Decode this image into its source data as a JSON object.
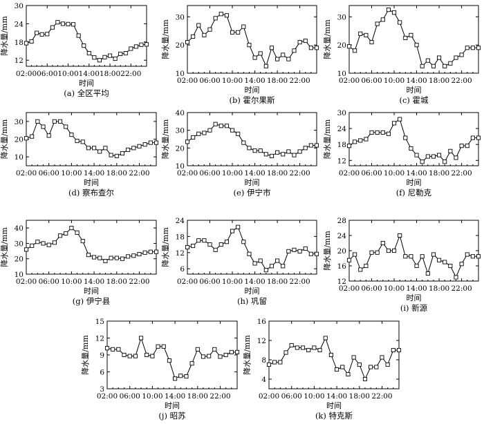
{
  "chart_data": [
    {
      "caption": "(a) 全区平均",
      "type": "line",
      "xlabel": "时间",
      "ylabel": "降水量/mm",
      "xticks": [
        "02:00",
        "06:00",
        "10:00",
        "14:00",
        "18:00",
        "22:00"
      ],
      "yticks": [
        12,
        18,
        24,
        30
      ],
      "ylim": [
        10,
        30
      ],
      "x": [
        "01:00",
        "02:00",
        "03:00",
        "04:00",
        "05:00",
        "06:00",
        "07:00",
        "08:00",
        "09:00",
        "10:00",
        "11:00",
        "12:00",
        "13:00",
        "14:00",
        "15:00",
        "16:00",
        "17:00",
        "18:00",
        "19:00",
        "20:00",
        "21:00",
        "22:00",
        "23:00",
        "24:00",
        "25:00"
      ],
      "values": [
        18.2,
        17.6,
        18.2,
        21.0,
        20.5,
        20.6,
        22.8,
        24.5,
        24.0,
        23.9,
        23.8,
        20.1,
        16.8,
        14.3,
        12.9,
        12.0,
        13.0,
        13.5,
        12.5,
        14.1,
        14.3,
        15.8,
        16.5,
        17.1,
        17.2
      ]
    },
    {
      "caption": "(b) 霍尔果斯",
      "type": "line",
      "xlabel": "时间",
      "ylabel": "降水量/mm",
      "xticks": [
        "02:00",
        "06:00",
        "10:00",
        "14:00",
        "18:00",
        "22:00"
      ],
      "yticks": [
        10,
        20,
        30
      ],
      "ylim": [
        10,
        34
      ],
      "x": [
        "01:00",
        "02:00",
        "03:00",
        "04:00",
        "05:00",
        "06:00",
        "07:00",
        "08:00",
        "09:00",
        "10:00",
        "11:00",
        "12:00",
        "13:00",
        "14:00",
        "15:00",
        "16:00",
        "17:00",
        "18:00",
        "19:00",
        "20:00",
        "21:00",
        "22:00",
        "23:00",
        "24:00",
        "25:00"
      ],
      "values": [
        19.5,
        21.0,
        23.0,
        27.0,
        23.5,
        25.5,
        29.5,
        31.0,
        30.5,
        24.5,
        24.5,
        26.5,
        20.0,
        15.5,
        17.0,
        12.5,
        19.0,
        15.0,
        16.5,
        15.0,
        18.0,
        21.0,
        21.5,
        19.0,
        19.0
      ]
    },
    {
      "caption": "(c) 霍城",
      "type": "line",
      "xlabel": "时间",
      "ylabel": "降水量/mm",
      "xticks": [
        "02:00",
        "06:00",
        "10:00",
        "14:00",
        "18:00",
        "22:00"
      ],
      "yticks": [
        10,
        20,
        30
      ],
      "ylim": [
        10,
        34
      ],
      "x": [
        "01:00",
        "02:00",
        "03:00",
        "04:00",
        "05:00",
        "06:00",
        "07:00",
        "08:00",
        "09:00",
        "10:00",
        "11:00",
        "12:00",
        "13:00",
        "14:00",
        "15:00",
        "16:00",
        "17:00",
        "18:00",
        "19:00",
        "20:00",
        "21:00",
        "22:00",
        "23:00",
        "24:00",
        "25:00"
      ],
      "values": [
        19.5,
        19.5,
        18.0,
        24.0,
        23.5,
        21.0,
        27.5,
        29.0,
        32.5,
        31.5,
        28.0,
        22.5,
        23.5,
        20.0,
        12.5,
        14.5,
        12.5,
        15.5,
        12.5,
        13.5,
        15.5,
        16.5,
        19.0,
        19.0,
        19.0
      ]
    },
    {
      "caption": "(d) 察布查尔",
      "type": "line",
      "xlabel": "时间",
      "ylabel": "降水量/mm",
      "xticks": [
        "02:00",
        "06:00",
        "10:00",
        "14:00",
        "18:00",
        "22:00"
      ],
      "yticks": [
        10,
        20,
        30
      ],
      "ylim": [
        5,
        35
      ],
      "x": [
        "01:00",
        "02:00",
        "03:00",
        "04:00",
        "05:00",
        "06:00",
        "07:00",
        "08:00",
        "09:00",
        "10:00",
        "11:00",
        "12:00",
        "13:00",
        "14:00",
        "15:00",
        "16:00",
        "17:00",
        "18:00",
        "19:00",
        "20:00",
        "21:00",
        "22:00",
        "23:00",
        "24:00",
        "25:00"
      ],
      "values": [
        20.0,
        20.5,
        21.5,
        30.0,
        27.0,
        22.0,
        30.0,
        30.0,
        27.0,
        22.5,
        19.0,
        18.5,
        15.0,
        15.0,
        13.0,
        15.0,
        11.0,
        10.5,
        12.0,
        14.0,
        15.0,
        16.0,
        17.0,
        18.0,
        18.0
      ]
    },
    {
      "caption": "(e) 伊宁市",
      "type": "line",
      "xlabel": "时间",
      "ylabel": "降水量/mm",
      "xticks": [
        "02:00",
        "06:00",
        "10:00",
        "14:00",
        "18:00",
        "22:00"
      ],
      "yticks": [
        10,
        20,
        30,
        40
      ],
      "ylim": [
        10,
        40
      ],
      "x": [
        "01:00",
        "02:00",
        "03:00",
        "04:00",
        "05:00",
        "06:00",
        "07:00",
        "08:00",
        "09:00",
        "10:00",
        "11:00",
        "12:00",
        "13:00",
        "14:00",
        "15:00",
        "16:00",
        "17:00",
        "18:00",
        "19:00",
        "20:00",
        "21:00",
        "22:00",
        "23:00",
        "24:00",
        "25:00"
      ],
      "values": [
        25.0,
        23.5,
        26.0,
        28.0,
        28.5,
        30.0,
        33.5,
        32.5,
        32.5,
        30.0,
        28.0,
        23.0,
        20.0,
        18.5,
        18.5,
        16.5,
        15.5,
        17.5,
        16.5,
        18.0,
        16.0,
        18.0,
        20.0,
        21.5,
        21.5
      ]
    },
    {
      "caption": "(f) 尼勒克",
      "type": "line",
      "xlabel": "时间",
      "ylabel": "降水量/mm",
      "xticks": [
        "02:00",
        "06:00",
        "10:00",
        "14:00",
        "18:00",
        "22:00"
      ],
      "yticks": [
        12,
        18,
        24,
        30
      ],
      "ylim": [
        10,
        30
      ],
      "x": [
        "01:00",
        "02:00",
        "03:00",
        "04:00",
        "05:00",
        "06:00",
        "07:00",
        "08:00",
        "09:00",
        "10:00",
        "11:00",
        "12:00",
        "13:00",
        "14:00",
        "15:00",
        "16:00",
        "17:00",
        "18:00",
        "19:00",
        "20:00",
        "21:00",
        "22:00",
        "23:00",
        "24:00",
        "25:00"
      ],
      "values": [
        20.5,
        17.5,
        19.0,
        19.5,
        20.0,
        22.5,
        22.5,
        22.5,
        22.0,
        26.0,
        27.5,
        20.5,
        16.5,
        14.0,
        11.5,
        13.5,
        13.5,
        14.0,
        11.5,
        15.5,
        13.0,
        17.5,
        17.5,
        20.5,
        20.5
      ]
    },
    {
      "caption": "(g) 伊宁县",
      "type": "line",
      "xlabel": "时间",
      "ylabel": "降水量/mm",
      "xticks": [
        "02:00",
        "06:00",
        "10:00",
        "14:00",
        "18:00",
        "22:00"
      ],
      "yticks": [
        10,
        20,
        30,
        40
      ],
      "ylim": [
        10,
        45
      ],
      "x": [
        "01:00",
        "02:00",
        "03:00",
        "04:00",
        "05:00",
        "06:00",
        "07:00",
        "08:00",
        "09:00",
        "10:00",
        "11:00",
        "12:00",
        "13:00",
        "14:00",
        "15:00",
        "16:00",
        "17:00",
        "18:00",
        "19:00",
        "20:00",
        "21:00",
        "22:00",
        "23:00",
        "24:00",
        "25:00"
      ],
      "values": [
        27.0,
        26.0,
        28.5,
        31.0,
        30.0,
        29.0,
        30.5,
        35.0,
        36.5,
        40.0,
        37.0,
        31.5,
        22.5,
        21.0,
        20.5,
        18.5,
        20.5,
        20.5,
        20.0,
        21.5,
        22.0,
        23.0,
        24.0,
        24.5,
        24.5
      ]
    },
    {
      "caption": "(h) 巩留",
      "type": "line",
      "xlabel": "时间",
      "ylabel": "降水量/mm",
      "xticks": [
        "02:00",
        "06:00",
        "10:00",
        "14:00",
        "18:00",
        "22:00"
      ],
      "yticks": [
        6,
        12,
        18,
        24
      ],
      "ylim": [
        4,
        24
      ],
      "x": [
        "01:00",
        "02:00",
        "03:00",
        "04:00",
        "05:00",
        "06:00",
        "07:00",
        "08:00",
        "09:00",
        "10:00",
        "11:00",
        "12:00",
        "13:00",
        "14:00",
        "15:00",
        "16:00",
        "17:00",
        "18:00",
        "19:00",
        "20:00",
        "21:00",
        "22:00",
        "23:00",
        "24:00",
        "25:00"
      ],
      "values": [
        13.5,
        14.0,
        14.5,
        16.5,
        16.5,
        15.0,
        13.0,
        15.0,
        16.0,
        20.0,
        21.5,
        16.0,
        11.5,
        8.0,
        9.0,
        5.5,
        7.0,
        9.0,
        7.0,
        12.5,
        13.0,
        12.5,
        13.5,
        11.5,
        11.5
      ]
    },
    {
      "caption": "(i) 新源",
      "type": "line",
      "xlabel": "时间",
      "ylabel": "降水量/mm",
      "xticks": [
        "02:00",
        "06:00",
        "10:00",
        "14:00",
        "18:00",
        "22:00"
      ],
      "yticks": [
        12,
        16,
        20,
        24,
        28
      ],
      "ylim": [
        12,
        28
      ],
      "x": [
        "01:00",
        "02:00",
        "03:00",
        "04:00",
        "05:00",
        "06:00",
        "07:00",
        "08:00",
        "09:00",
        "10:00",
        "11:00",
        "12:00",
        "13:00",
        "14:00",
        "15:00",
        "16:00",
        "17:00",
        "18:00",
        "19:00",
        "20:00",
        "21:00",
        "22:00",
        "23:00",
        "24:00",
        "25:00"
      ],
      "values": [
        15.5,
        17.5,
        19.0,
        15.0,
        16.0,
        19.5,
        19.5,
        22.0,
        20.0,
        20.0,
        24.0,
        18.5,
        18.5,
        16.0,
        18.5,
        14.0,
        19.0,
        17.5,
        17.0,
        16.0,
        13.0,
        16.5,
        19.0,
        18.5,
        18.5
      ]
    },
    {
      "caption": "(j) 昭苏",
      "type": "line",
      "xlabel": "时间",
      "ylabel": "降水量/mm",
      "xticks": [
        "02:00",
        "06:00",
        "10:00",
        "14:00",
        "18:00",
        "22:00"
      ],
      "yticks": [
        3,
        6,
        9,
        12,
        15
      ],
      "ylim": [
        3,
        15
      ],
      "x": [
        "01:00",
        "02:00",
        "03:00",
        "04:00",
        "05:00",
        "06:00",
        "07:00",
        "08:00",
        "09:00",
        "10:00",
        "11:00",
        "12:00",
        "13:00",
        "14:00",
        "15:00",
        "16:00",
        "17:00",
        "18:00",
        "19:00",
        "20:00",
        "21:00",
        "22:00",
        "23:00",
        "24:00",
        "25:00"
      ],
      "values": [
        8.8,
        10.2,
        10.0,
        10.0,
        9.0,
        8.8,
        8.8,
        12.0,
        9.0,
        8.8,
        10.5,
        10.5,
        8.0,
        4.8,
        5.3,
        5.2,
        7.5,
        10.0,
        8.7,
        8.8,
        10.0,
        8.7,
        9.0,
        9.5,
        9.5
      ]
    },
    {
      "caption": "(k) 特克斯",
      "type": "line",
      "xlabel": "时间",
      "ylabel": "降水量/mm",
      "xticks": [
        "02:00",
        "06:00",
        "10:00",
        "14:00",
        "18:00",
        "22:00"
      ],
      "yticks": [
        4,
        8,
        12,
        16
      ],
      "ylim": [
        2,
        16
      ],
      "x": [
        "01:00",
        "02:00",
        "03:00",
        "04:00",
        "05:00",
        "06:00",
        "07:00",
        "08:00",
        "09:00",
        "10:00",
        "11:00",
        "12:00",
        "13:00",
        "14:00",
        "15:00",
        "16:00",
        "17:00",
        "18:00",
        "19:00",
        "20:00",
        "21:00",
        "22:00",
        "23:00",
        "24:00",
        "25:00"
      ],
      "values": [
        8.0,
        7.0,
        7.5,
        7.5,
        9.5,
        11.0,
        10.5,
        10.5,
        10.0,
        10.5,
        10.0,
        12.5,
        9.0,
        6.0,
        6.5,
        5.0,
        8.5,
        7.0,
        4.0,
        6.5,
        6.5,
        8.5,
        7.0,
        10.0,
        10.0
      ]
    }
  ]
}
